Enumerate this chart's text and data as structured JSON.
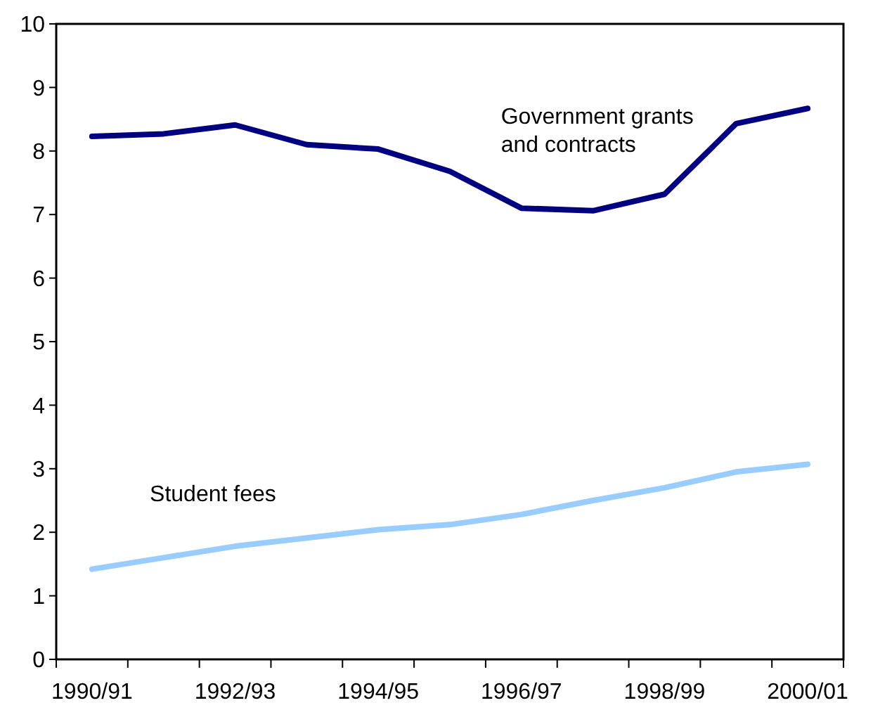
{
  "chart_data": {
    "type": "line",
    "categories": [
      "1990/91",
      null,
      "1992/93",
      null,
      "1994/95",
      null,
      "1996/97",
      null,
      "1998/99",
      null,
      "2000/01"
    ],
    "series": [
      {
        "name": "Government grants\nand contracts",
        "color": "#000080",
        "values": [
          8.23,
          8.27,
          8.41,
          8.1,
          8.03,
          7.68,
          7.1,
          7.06,
          7.32,
          8.43,
          8.67
        ]
      },
      {
        "name": "Student fees",
        "color": "#99ccff",
        "values": [
          1.42,
          1.6,
          1.78,
          1.91,
          2.04,
          2.12,
          2.28,
          2.5,
          2.7,
          2.95,
          3.07
        ]
      }
    ],
    "ylim": [
      0,
      10
    ],
    "yticks": [
      0,
      1,
      2,
      3,
      4,
      5,
      6,
      7,
      8,
      9,
      10
    ],
    "grid": false,
    "legend": false,
    "marker": "none",
    "line_style": "solid"
  }
}
